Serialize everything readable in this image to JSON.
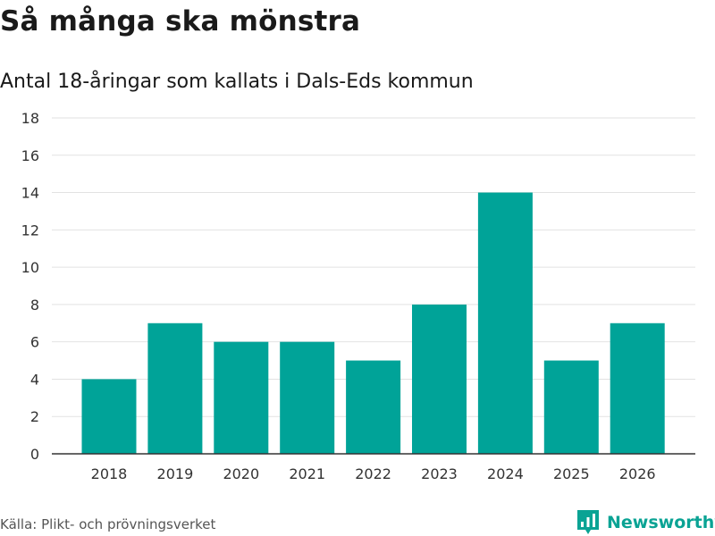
{
  "header": {
    "title": "Så många ska mönstra",
    "subtitle": "Antal 18-åringar som kallats i Dals-Eds kommun"
  },
  "footer": {
    "source": "Källa: Plikt- och prövningsverket",
    "brand": "Newsworthy",
    "logo_icon": "bar-chart-logo-icon"
  },
  "colors": {
    "bar": "#00a398",
    "grid": "#e2e2e2",
    "axis": "#333333",
    "brand": "#0aa394"
  },
  "chart_data": {
    "type": "bar",
    "title": "Så många ska mönstra",
    "subtitle": "Antal 18-åringar som kallats i Dals-Eds kommun",
    "categories": [
      "2018",
      "2019",
      "2020",
      "2021",
      "2022",
      "2023",
      "2024",
      "2025",
      "2026"
    ],
    "values": [
      4,
      7,
      6,
      6,
      5,
      8,
      14,
      5,
      7
    ],
    "xlabel": "",
    "ylabel": "",
    "ylim": [
      0,
      18
    ],
    "yticks": [
      0,
      2,
      4,
      6,
      8,
      10,
      12,
      14,
      16,
      18
    ],
    "grid": true,
    "legend": "none"
  }
}
